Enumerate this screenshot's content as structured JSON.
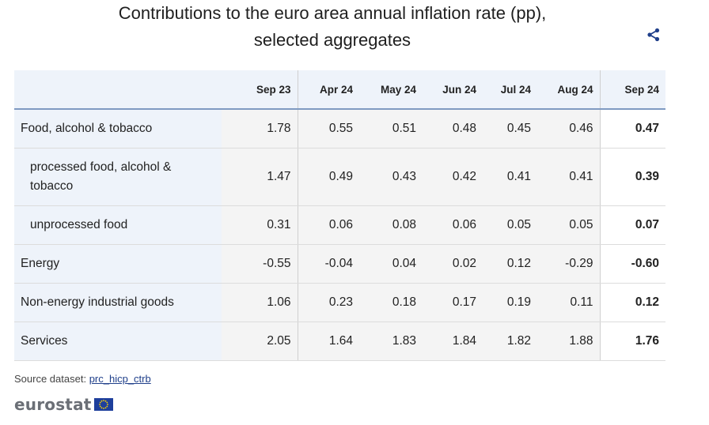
{
  "title_line1": "Contributions to the euro area annual inflation rate (pp),",
  "title_line2": "selected aggregates",
  "icons": {
    "share": "share-icon",
    "flag": "eu-flag-icon"
  },
  "colors": {
    "header_bg": "#eef3fa",
    "header_rule": "#7f9ac2",
    "link": "#1f3f8a",
    "share": "#1f3f8a"
  },
  "source_label": "Source dataset:",
  "source_link": "prc_hicp_ctrb",
  "logo_text": "eurostat",
  "chart_data": {
    "type": "table",
    "columns": [
      "Sep 23",
      "Apr 24",
      "May 24",
      "Jun 24",
      "Jul 24",
      "Aug 24",
      "Sep 24"
    ],
    "rows": [
      {
        "label": "Food, alcohol & tobacco",
        "values": [
          "1.78",
          "0.55",
          "0.51",
          "0.48",
          "0.45",
          "0.46",
          "0.47"
        ]
      },
      {
        "label": "processed food, alcohol & tobacco",
        "values": [
          "1.47",
          "0.49",
          "0.43",
          "0.42",
          "0.41",
          "0.41",
          "0.39"
        ]
      },
      {
        "label": "unprocessed food",
        "values": [
          "0.31",
          "0.06",
          "0.08",
          "0.06",
          "0.05",
          "0.05",
          "0.07"
        ]
      },
      {
        "label": "Energy",
        "values": [
          "-0.55",
          "-0.04",
          "0.04",
          "0.02",
          "0.12",
          "-0.29",
          "-0.60"
        ]
      },
      {
        "label": "Non-energy industrial goods",
        "values": [
          "1.06",
          "0.23",
          "0.18",
          "0.17",
          "0.19",
          "0.11",
          "0.12"
        ]
      },
      {
        "label": "Services",
        "values": [
          "2.05",
          "1.64",
          "1.83",
          "1.84",
          "1.82",
          "1.88",
          "1.76"
        ]
      }
    ]
  }
}
